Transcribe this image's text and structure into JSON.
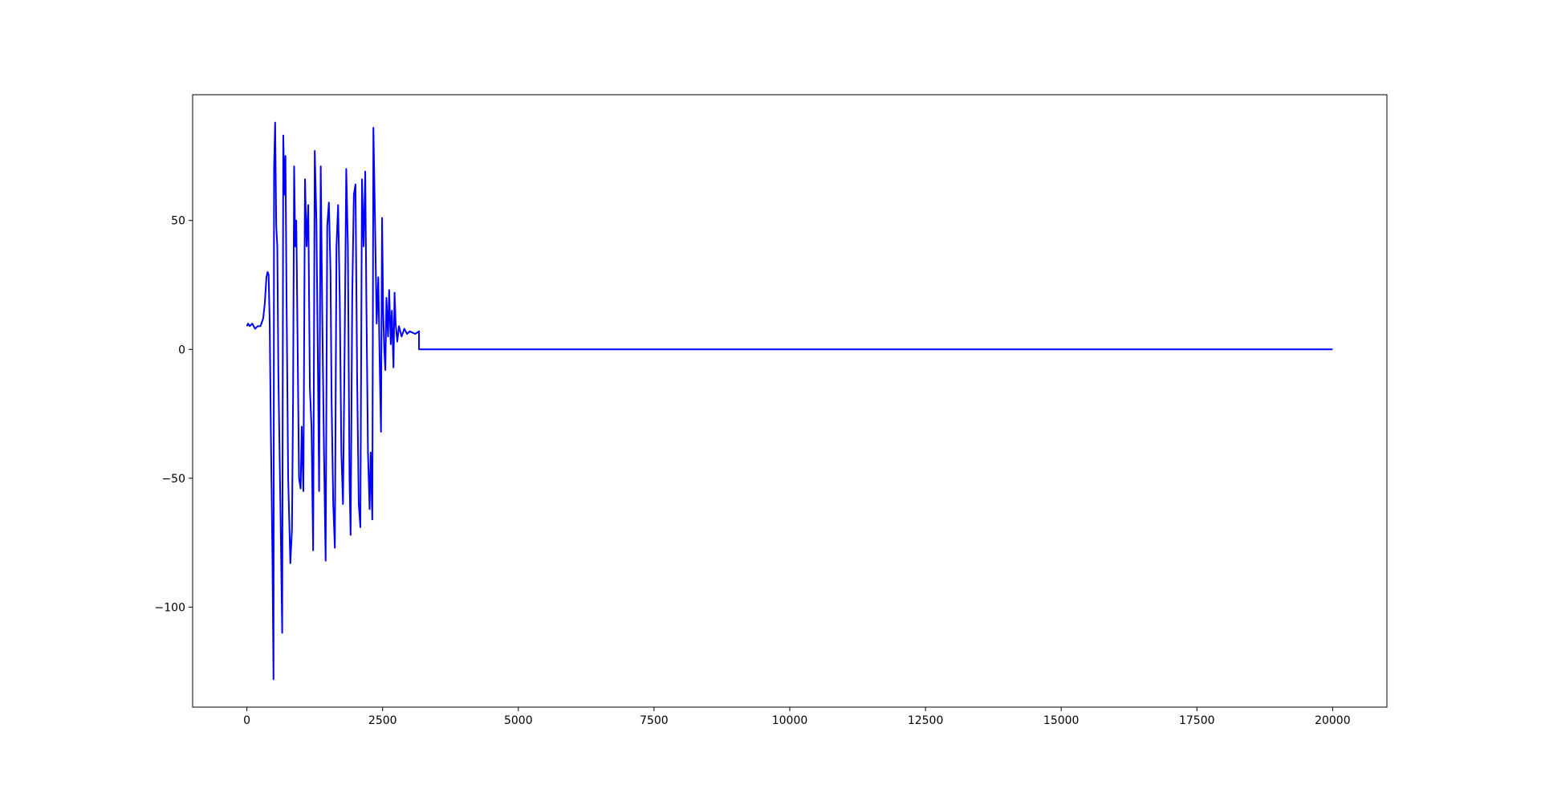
{
  "chart_data": {
    "type": "line",
    "x": [
      0,
      20,
      50,
      100,
      150,
      200,
      250,
      300,
      330,
      360,
      380,
      400,
      420,
      440,
      470,
      490,
      500,
      520,
      540,
      560,
      580,
      620,
      650,
      670,
      690,
      710,
      730,
      760,
      800,
      830,
      850,
      870,
      890,
      910,
      930,
      960,
      990,
      1010,
      1040,
      1070,
      1100,
      1130,
      1160,
      1190,
      1220,
      1250,
      1280,
      1310,
      1330,
      1360,
      1390,
      1420,
      1450,
      1480,
      1510,
      1540,
      1560,
      1590,
      1620,
      1650,
      1680,
      1710,
      1740,
      1770,
      1800,
      1830,
      1860,
      1890,
      1910,
      1940,
      1970,
      2000,
      2030,
      2060,
      2090,
      2120,
      2150,
      2180,
      2200,
      2230,
      2260,
      2280,
      2310,
      2330,
      2360,
      2390,
      2420,
      2450,
      2470,
      2490,
      2510,
      2530,
      2550,
      2570,
      2600,
      2620,
      2650,
      2670,
      2700,
      2720,
      2740,
      2770,
      2800,
      2850,
      2900,
      2950,
      3000,
      3100,
      3170,
      3170,
      20000
    ],
    "series": [
      {
        "color": "#0000ff",
        "values": [
          9,
          10,
          9,
          10,
          8,
          9,
          9,
          12,
          18,
          28,
          30,
          29,
          10,
          -30,
          -80,
          -128,
          70,
          88,
          48,
          40,
          -10,
          -65,
          -110,
          83,
          60,
          75,
          20,
          -50,
          -83,
          -70,
          -20,
          71,
          40,
          50,
          10,
          -50,
          -54,
          -30,
          -55,
          66,
          40,
          56,
          -15,
          -30,
          -78,
          77,
          50,
          -10,
          -55,
          71,
          10,
          -40,
          -82,
          48,
          57,
          30,
          -20,
          -60,
          -77,
          40,
          56,
          20,
          -40,
          -60,
          0,
          70,
          40,
          -50,
          -72,
          20,
          60,
          64,
          -10,
          -60,
          -69,
          66,
          40,
          69,
          20,
          -40,
          -62,
          -40,
          -66,
          86,
          50,
          10,
          28,
          -10,
          -32,
          51,
          15,
          0,
          -8,
          20,
          5,
          23,
          2,
          15,
          -7,
          22,
          10,
          3,
          9,
          5,
          8,
          6,
          7,
          6,
          7,
          0,
          0
        ]
      }
    ],
    "xlim": [
      -1000,
      21000
    ],
    "ylim": [
      -138.8,
      98.8
    ],
    "xticks": [
      0,
      2500,
      5000,
      7500,
      10000,
      12500,
      15000,
      17500,
      20000
    ],
    "yticks": [
      {
        "value": -100,
        "label": "−100"
      },
      {
        "value": -50,
        "label": "−50"
      },
      0,
      50
    ]
  }
}
